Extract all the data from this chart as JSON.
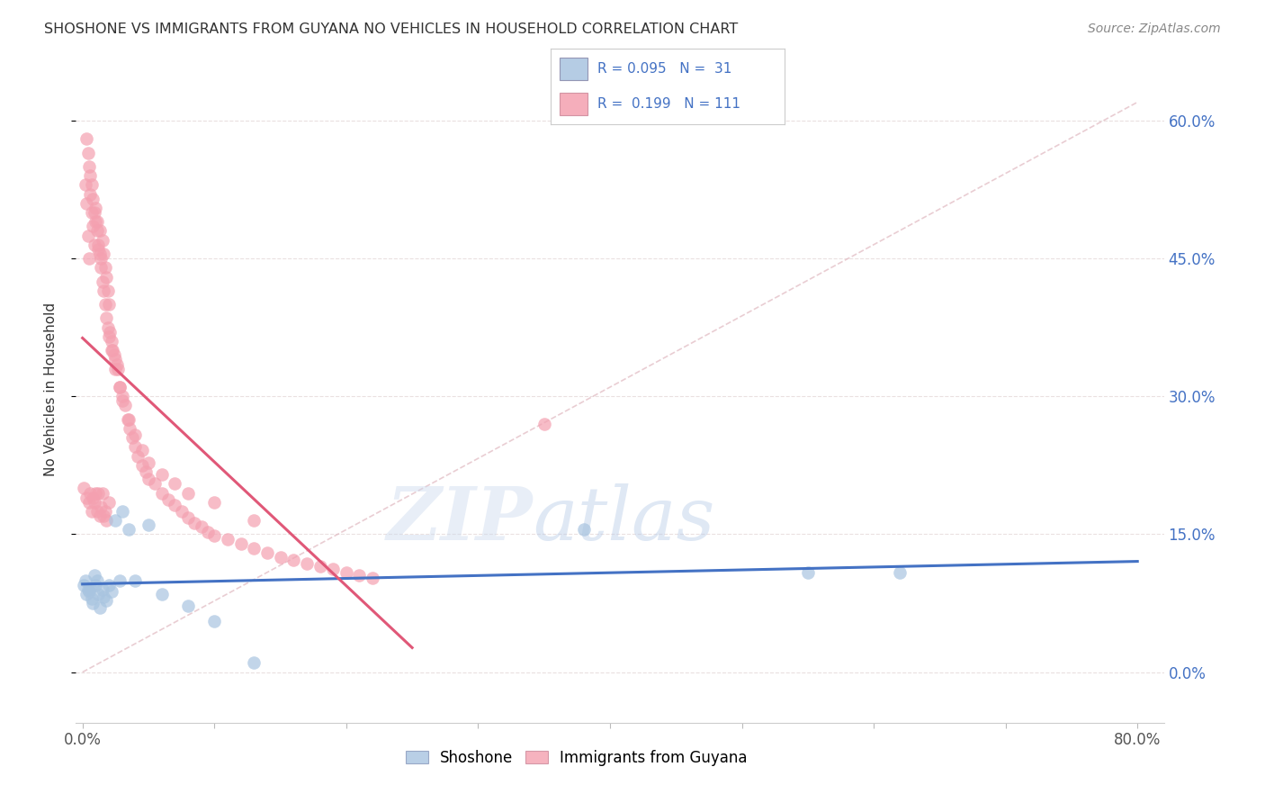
{
  "title": "SHOSHONE VS IMMIGRANTS FROM GUYANA NO VEHICLES IN HOUSEHOLD CORRELATION CHART",
  "source": "Source: ZipAtlas.com",
  "ylabel": "No Vehicles in Household",
  "shoshone_color": "#a8c4e0",
  "shoshone_line_color": "#4472c4",
  "guyana_color": "#f4a0b0",
  "guyana_line_color": "#e05878",
  "diag_color": "#e0b8c0",
  "legend_shoshone": "Shoshone",
  "legend_guyana": "Immigrants from Guyana",
  "xlim": [
    -0.005,
    0.82
  ],
  "ylim": [
    -0.055,
    0.67
  ],
  "ytick_vals": [
    0.0,
    0.15,
    0.3,
    0.45,
    0.6
  ],
  "ytick_labels": [
    "0.0%",
    "15.0%",
    "30.0%",
    "45.0%",
    "60.0%"
  ],
  "xtick_vals": [
    0.0,
    0.1,
    0.2,
    0.3,
    0.4,
    0.5,
    0.6,
    0.7,
    0.8
  ],
  "xtick_labels": [
    "0.0%",
    "",
    "",
    "",
    "",
    "",
    "",
    "",
    "80.0%"
  ],
  "shoshone_x": [
    0.001,
    0.002,
    0.003,
    0.004,
    0.005,
    0.006,
    0.007,
    0.008,
    0.009,
    0.01,
    0.011,
    0.012,
    0.013,
    0.015,
    0.016,
    0.018,
    0.02,
    0.022,
    0.025,
    0.028,
    0.03,
    0.035,
    0.04,
    0.05,
    0.06,
    0.08,
    0.1,
    0.13,
    0.38,
    0.55,
    0.62
  ],
  "shoshone_y": [
    0.095,
    0.1,
    0.085,
    0.09,
    0.088,
    0.092,
    0.08,
    0.075,
    0.105,
    0.095,
    0.1,
    0.085,
    0.07,
    0.09,
    0.082,
    0.078,
    0.095,
    0.088,
    0.165,
    0.1,
    0.175,
    0.155,
    0.1,
    0.16,
    0.085,
    0.072,
    0.055,
    0.01,
    0.155,
    0.108,
    0.108
  ],
  "guyana_x": [
    0.001,
    0.002,
    0.003,
    0.003,
    0.004,
    0.005,
    0.005,
    0.006,
    0.006,
    0.007,
    0.007,
    0.008,
    0.008,
    0.009,
    0.009,
    0.01,
    0.01,
    0.011,
    0.011,
    0.012,
    0.012,
    0.013,
    0.013,
    0.014,
    0.014,
    0.015,
    0.015,
    0.016,
    0.016,
    0.017,
    0.017,
    0.018,
    0.018,
    0.019,
    0.02,
    0.02,
    0.021,
    0.022,
    0.023,
    0.024,
    0.025,
    0.026,
    0.027,
    0.028,
    0.03,
    0.032,
    0.034,
    0.036,
    0.038,
    0.04,
    0.042,
    0.045,
    0.048,
    0.05,
    0.055,
    0.06,
    0.065,
    0.07,
    0.075,
    0.08,
    0.085,
    0.09,
    0.095,
    0.1,
    0.11,
    0.12,
    0.13,
    0.14,
    0.15,
    0.16,
    0.17,
    0.18,
    0.19,
    0.2,
    0.21,
    0.22,
    0.003,
    0.004,
    0.005,
    0.006,
    0.007,
    0.008,
    0.009,
    0.01,
    0.011,
    0.012,
    0.013,
    0.014,
    0.015,
    0.016,
    0.017,
    0.018,
    0.019,
    0.02,
    0.022,
    0.025,
    0.028,
    0.03,
    0.035,
    0.04,
    0.045,
    0.05,
    0.06,
    0.07,
    0.08,
    0.1,
    0.13,
    0.35
  ],
  "guyana_y": [
    0.2,
    0.53,
    0.51,
    0.19,
    0.475,
    0.45,
    0.185,
    0.52,
    0.195,
    0.5,
    0.175,
    0.485,
    0.19,
    0.465,
    0.185,
    0.505,
    0.195,
    0.49,
    0.175,
    0.46,
    0.195,
    0.48,
    0.17,
    0.45,
    0.18,
    0.47,
    0.195,
    0.455,
    0.17,
    0.44,
    0.175,
    0.43,
    0.165,
    0.415,
    0.4,
    0.185,
    0.37,
    0.36,
    0.35,
    0.345,
    0.34,
    0.335,
    0.33,
    0.31,
    0.3,
    0.29,
    0.275,
    0.265,
    0.255,
    0.245,
    0.235,
    0.225,
    0.218,
    0.21,
    0.205,
    0.195,
    0.188,
    0.182,
    0.175,
    0.168,
    0.162,
    0.158,
    0.152,
    0.148,
    0.145,
    0.14,
    0.135,
    0.13,
    0.125,
    0.122,
    0.118,
    0.115,
    0.112,
    0.108,
    0.105,
    0.102,
    0.58,
    0.565,
    0.55,
    0.54,
    0.53,
    0.515,
    0.5,
    0.49,
    0.48,
    0.465,
    0.455,
    0.44,
    0.425,
    0.415,
    0.4,
    0.385,
    0.375,
    0.365,
    0.35,
    0.33,
    0.31,
    0.295,
    0.275,
    0.258,
    0.242,
    0.228,
    0.215,
    0.205,
    0.195,
    0.185,
    0.165,
    0.27
  ],
  "diag_line": [
    [
      0.0,
      0.0
    ],
    [
      0.8,
      0.62
    ]
  ]
}
